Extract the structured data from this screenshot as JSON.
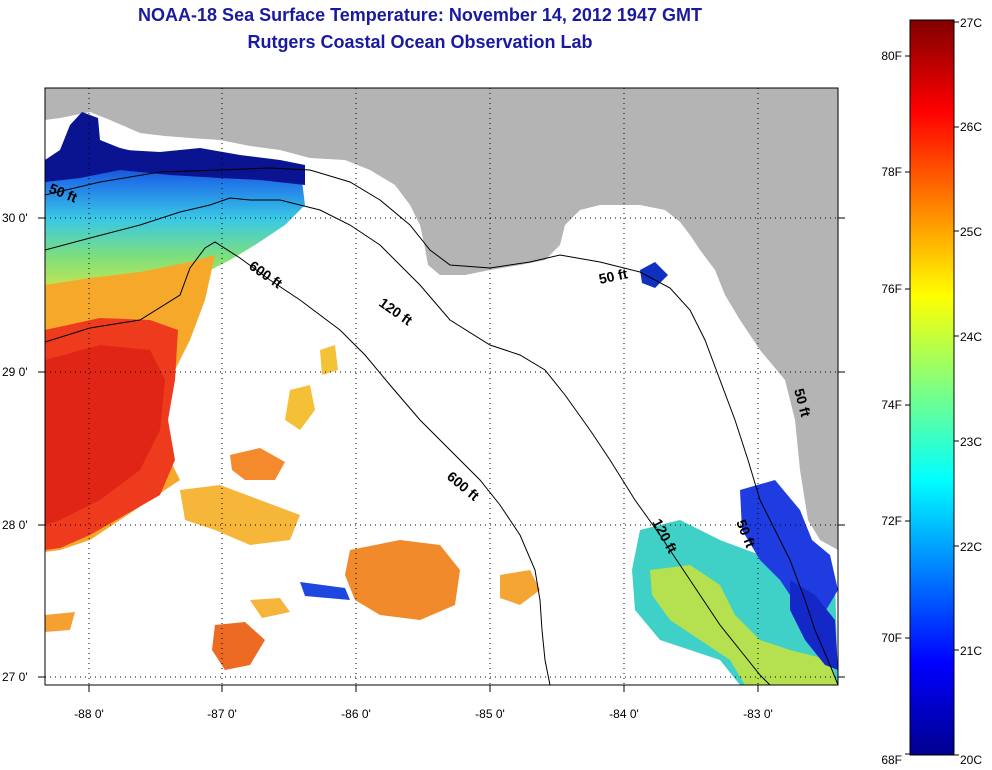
{
  "header": {
    "title": "NOAA-18 Sea Surface Temperature:  November 14, 2012 1947 GMT",
    "subtitle": "Rutgers Coastal Ocean Observation Lab"
  },
  "map": {
    "longitude_ticks": [
      "-88 0'",
      "-87 0'",
      "-86 0'",
      "-85 0'",
      "-84 0'",
      "-83 0'"
    ],
    "latitude_ticks": [
      "30 0'",
      "29 0'",
      "28 0'",
      "27 0'"
    ],
    "contour_labels": [
      "50 ft",
      "600 ft",
      "120 ft",
      "50 ft",
      "600 ft",
      "120 ft",
      "50 ft",
      "50 ft"
    ],
    "colors": {
      "land": "#b4b4b4",
      "ocean_no_data": "#ffffff",
      "grid": "#000000"
    }
  },
  "colorbar": {
    "celsius_labels": [
      "27C",
      "26C",
      "25C",
      "24C",
      "23C",
      "22C",
      "21C",
      "20C"
    ],
    "fahrenheit_labels": [
      "80F",
      "78F",
      "76F",
      "74F",
      "72F",
      "70F",
      "68F"
    ],
    "colormap": "jet"
  }
}
